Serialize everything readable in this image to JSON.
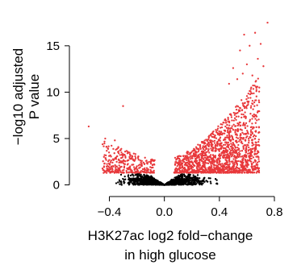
{
  "chart_data": {
    "type": "scatter",
    "title": "",
    "xlabel_lines": [
      "H3K27ac log2 fold−change",
      "in high glucose"
    ],
    "ylabel_lines": [
      "−log10  adjusted",
      "P value"
    ],
    "xlim": [
      -0.62,
      0.8
    ],
    "ylim": [
      -0.3,
      18.2
    ],
    "x_ticks": [
      -0.4,
      0.0,
      0.4,
      0.8
    ],
    "x_tick_labels": [
      "−0.4",
      "0.0",
      "0.4",
      "0.8"
    ],
    "y_ticks": [
      0,
      5,
      10,
      15
    ],
    "y_tick_labels": [
      "0",
      "5",
      "10",
      "15"
    ],
    "grid": false,
    "significance_threshold": 1.3,
    "colors": {
      "significant": "#e8383b",
      "not_significant": "#000000"
    },
    "series": [
      {
        "points": [
          [
            0.75,
            17.5
          ],
          [
            0.66,
            16.4
          ],
          [
            0.58,
            16.2
          ],
          [
            0.7,
            15.2
          ],
          [
            0.62,
            15.0
          ],
          [
            0.55,
            14.5
          ],
          [
            0.68,
            13.6
          ],
          [
            0.6,
            13.0
          ],
          [
            0.72,
            12.8
          ],
          [
            0.5,
            12.6
          ],
          [
            0.57,
            12.0
          ],
          [
            0.64,
            11.8
          ],
          [
            0.53,
            11.4
          ],
          [
            0.47,
            10.9
          ],
          [
            0.69,
            10.5
          ],
          [
            -0.3,
            8.5
          ],
          [
            -0.55,
            6.3
          ],
          [
            -0.43,
            5.0
          ],
          [
            -0.36,
            4.8
          ]
        ]
      }
    ],
    "notes": "Volcano plot of several thousand points; representative points listed, bulk cloud generated from the envelope shape."
  }
}
